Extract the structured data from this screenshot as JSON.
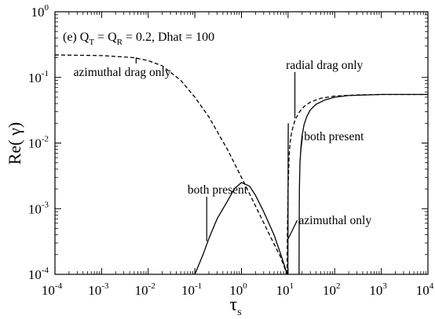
{
  "chart_data": {
    "type": "line",
    "x_scale": "log",
    "y_scale": "log",
    "xlim": [
      0.0001,
      10000
    ],
    "ylim": [
      0.0001,
      1
    ],
    "grid": false,
    "xlabel": {
      "main": "τ",
      "sub": "s"
    },
    "ylabel": "Re( γ)",
    "x_ticks": [
      {
        "base": "10",
        "exp": "-4"
      },
      {
        "base": "10",
        "exp": "-3"
      },
      {
        "base": "10",
        "exp": "-2"
      },
      {
        "base": "10",
        "exp": "-1"
      },
      {
        "base": "10",
        "exp": "0"
      },
      {
        "base": "10",
        "exp": "1"
      },
      {
        "base": "10",
        "exp": "2"
      },
      {
        "base": "10",
        "exp": "3"
      },
      {
        "base": "10",
        "exp": "4"
      }
    ],
    "y_ticks": [
      {
        "base": "10",
        "exp": "-4"
      },
      {
        "base": "10",
        "exp": "-3"
      },
      {
        "base": "10",
        "exp": "-2"
      },
      {
        "base": "10",
        "exp": "-1"
      },
      {
        "base": "10",
        "exp": "0"
      }
    ],
    "title_annotation": {
      "prefix": "(e) Q",
      "sub1": "T",
      "mid": " = Q",
      "sub2": "R",
      "suffix": " = 0.2, Dhat = 100"
    },
    "series": [
      {
        "id": "azimuthal-drag",
        "style": "dashed",
        "x": [
          0.0001,
          0.001,
          0.005,
          0.01,
          0.02,
          0.05,
          0.1,
          0.2,
          0.5,
          1,
          2,
          4,
          7,
          9.5
        ],
        "y": [
          0.22,
          0.215,
          0.2,
          0.18,
          0.15,
          0.09,
          0.05,
          0.025,
          0.008,
          0.003,
          0.0011,
          0.0004,
          0.00018,
          0.0001
        ]
      },
      {
        "id": "radial-drag",
        "style": "dashed",
        "x": [
          9.5,
          9.7,
          10,
          10.5,
          11,
          12,
          14,
          17,
          22,
          30,
          50,
          100,
          300,
          1000,
          10000
        ],
        "y": [
          0.0001,
          0.0005,
          0.002,
          0.006,
          0.01,
          0.015,
          0.022,
          0.029,
          0.036,
          0.042,
          0.048,
          0.052,
          0.054,
          0.055,
          0.055
        ]
      },
      {
        "id": "both-present-left",
        "style": "solid",
        "x": [
          0.1,
          0.15,
          0.2,
          0.3,
          0.5,
          0.7,
          1,
          1.5,
          2,
          3,
          5,
          7,
          9.6
        ],
        "y": [
          0.0001,
          0.0002,
          0.00035,
          0.0007,
          0.0013,
          0.002,
          0.0025,
          0.0022,
          0.0016,
          0.0009,
          0.0004,
          0.0002,
          0.0001
        ]
      },
      {
        "id": "both-present-right",
        "style": "solid",
        "x": [
          17.2,
          17.3,
          17.5,
          18,
          19,
          20,
          22,
          25,
          30,
          40,
          60,
          100,
          200,
          500,
          1000,
          10000
        ],
        "y": [
          0.0001,
          0.0005,
          0.002,
          0.005,
          0.009,
          0.013,
          0.019,
          0.025,
          0.032,
          0.039,
          0.045,
          0.05,
          0.053,
          0.054,
          0.055,
          0.055
        ]
      },
      {
        "id": "azimuthal-only",
        "style": "solid",
        "x": [
          9.9,
          9.95,
          10,
          10.05,
          10.1
        ],
        "y": [
          0.0001,
          0.0004,
          0.002,
          0.01,
          0.02
        ]
      }
    ],
    "annotations": [
      {
        "id": "azimuthal-drag-only",
        "text": "azimuthal drag only",
        "text_x": 0.00025,
        "text_y": 0.105,
        "arrow_to": [
          0.0055,
          0.2
        ]
      },
      {
        "id": "radial-drag-only",
        "text": "radial drag only",
        "text_x": 9,
        "text_y": 0.135,
        "arrow_to": [
          14,
          0.024
        ]
      },
      {
        "id": "both-present-upper",
        "text": "both present",
        "text_x": 22,
        "text_y": 0.011,
        "arrow_to": [
          18.5,
          0.007
        ]
      },
      {
        "id": "both-present-lower",
        "text": "both present",
        "text_x": 0.07,
        "text_y": 0.0017,
        "arrow_to": [
          0.18,
          0.00032
        ]
      },
      {
        "id": "azimuthal-only",
        "text": "azimuthal only",
        "text_x": 17,
        "text_y": 0.00058,
        "arrow_to": [
          10.1,
          0.00035
        ]
      }
    ]
  }
}
